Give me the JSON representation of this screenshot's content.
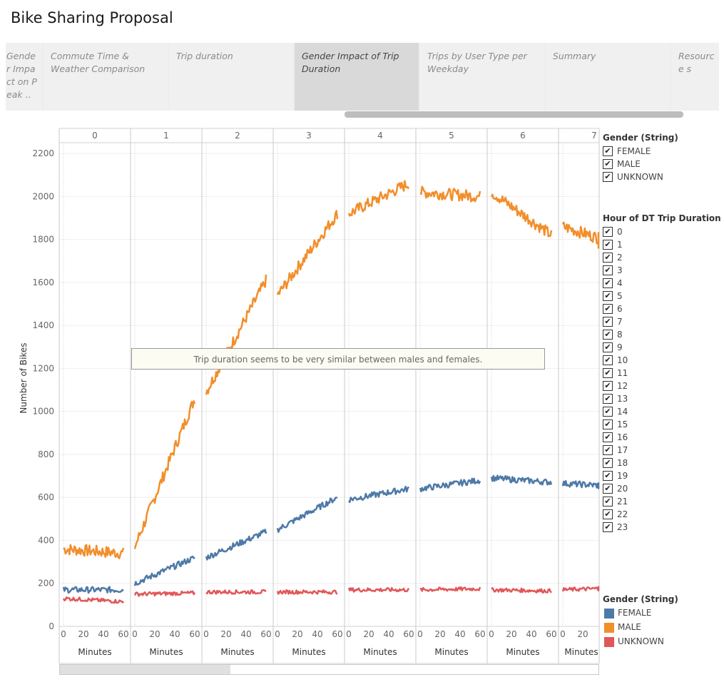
{
  "page": {
    "title": "Bike Sharing Proposal"
  },
  "story_tabs": [
    {
      "label": "Gende r Impa ct on Peak ..",
      "active": false
    },
    {
      "label": "Commute Time & Weather Comparison",
      "active": false
    },
    {
      "label": "Trip duration",
      "active": false
    },
    {
      "label": "Gender Impact of Trip Duration",
      "active": true
    },
    {
      "label": "Trips by User Type per Weekday",
      "active": false
    },
    {
      "label": "Summary",
      "active": false
    },
    {
      "label": "Resource s",
      "active": false
    }
  ],
  "filters": {
    "gender_title": "Gender (String)",
    "gender_items": [
      "FEMALE",
      "MALE",
      "UNKNOWN"
    ],
    "hour_title": "Hour of DT Trip Duration",
    "hour_items": [
      "0",
      "1",
      "2",
      "3",
      "4",
      "5",
      "6",
      "7",
      "8",
      "9",
      "10",
      "11",
      "12",
      "13",
      "14",
      "15",
      "16",
      "17",
      "18",
      "19",
      "20",
      "21",
      "22",
      "23"
    ],
    "check_mark": "✔"
  },
  "color_legend": {
    "title": "Gender (String)",
    "items": [
      {
        "label": "FEMALE",
        "color": "#4e79a7"
      },
      {
        "label": "MALE",
        "color": "#f28e2b"
      },
      {
        "label": "UNKNOWN",
        "color": "#e15759"
      }
    ]
  },
  "annotation": "Trip duration seems to be very similar between males and females.",
  "chart_data": {
    "type": "line",
    "panels_label": "Hour of DT Trip Duration",
    "panels": [
      "0",
      "1",
      "2",
      "3",
      "4",
      "5",
      "6",
      "7"
    ],
    "ylabel": "Number of Bikes",
    "xlabel": "Minutes",
    "ylim": [
      0,
      2250
    ],
    "yticks": [
      0,
      200,
      400,
      600,
      800,
      1000,
      1200,
      1400,
      1600,
      1800,
      2000,
      2200
    ],
    "xticks": [
      0,
      20,
      40,
      60
    ],
    "xlim": [
      0,
      60
    ],
    "last_panel_xlim": [
      0,
      35
    ],
    "last_panel_xticks": [
      0,
      20
    ],
    "series": [
      {
        "name": "MALE",
        "color": "#f28e2b",
        "start": [
          360,
          370,
          1090,
          1540,
          1920,
          2020,
          2020,
          1860
        ],
        "end": [
          340,
          1060,
          1610,
          1920,
          2060,
          2000,
          1820,
          1770
        ]
      },
      {
        "name": "FEMALE",
        "color": "#4e79a7",
        "start": [
          170,
          200,
          320,
          450,
          590,
          640,
          690,
          665
        ],
        "end": [
          170,
          320,
          440,
          600,
          640,
          680,
          670,
          650
        ]
      },
      {
        "name": "UNKNOWN",
        "color": "#e15759",
        "start": [
          130,
          150,
          160,
          160,
          170,
          170,
          170,
          170
        ],
        "end": [
          115,
          155,
          160,
          160,
          170,
          175,
          165,
          180
        ]
      }
    ]
  }
}
